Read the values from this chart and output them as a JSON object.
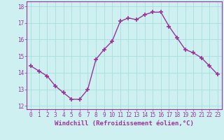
{
  "x": [
    0,
    1,
    2,
    3,
    4,
    5,
    6,
    7,
    8,
    9,
    10,
    11,
    12,
    13,
    14,
    15,
    16,
    17,
    18,
    19,
    20,
    21,
    22,
    23
  ],
  "y": [
    14.4,
    14.1,
    13.8,
    13.2,
    12.8,
    12.4,
    12.4,
    13.0,
    14.8,
    15.4,
    15.9,
    17.1,
    17.3,
    17.2,
    17.5,
    17.65,
    17.65,
    16.8,
    16.1,
    15.4,
    15.2,
    14.9,
    14.4,
    13.9
  ],
  "line_color": "#993399",
  "marker": "+",
  "marker_size": 4,
  "marker_linewidth": 1.2,
  "line_width": 1.0,
  "bg_color": "#cef0f0",
  "grid_color": "#aadddd",
  "xlabel": "Windchill (Refroidissement éolien,°C)",
  "xlabel_fontsize": 6.5,
  "tick_fontsize": 5.5,
  "ylabel_ticks": [
    12,
    13,
    14,
    15,
    16,
    17,
    18
  ],
  "xlim": [
    -0.5,
    23.5
  ],
  "ylim": [
    11.8,
    18.3
  ]
}
